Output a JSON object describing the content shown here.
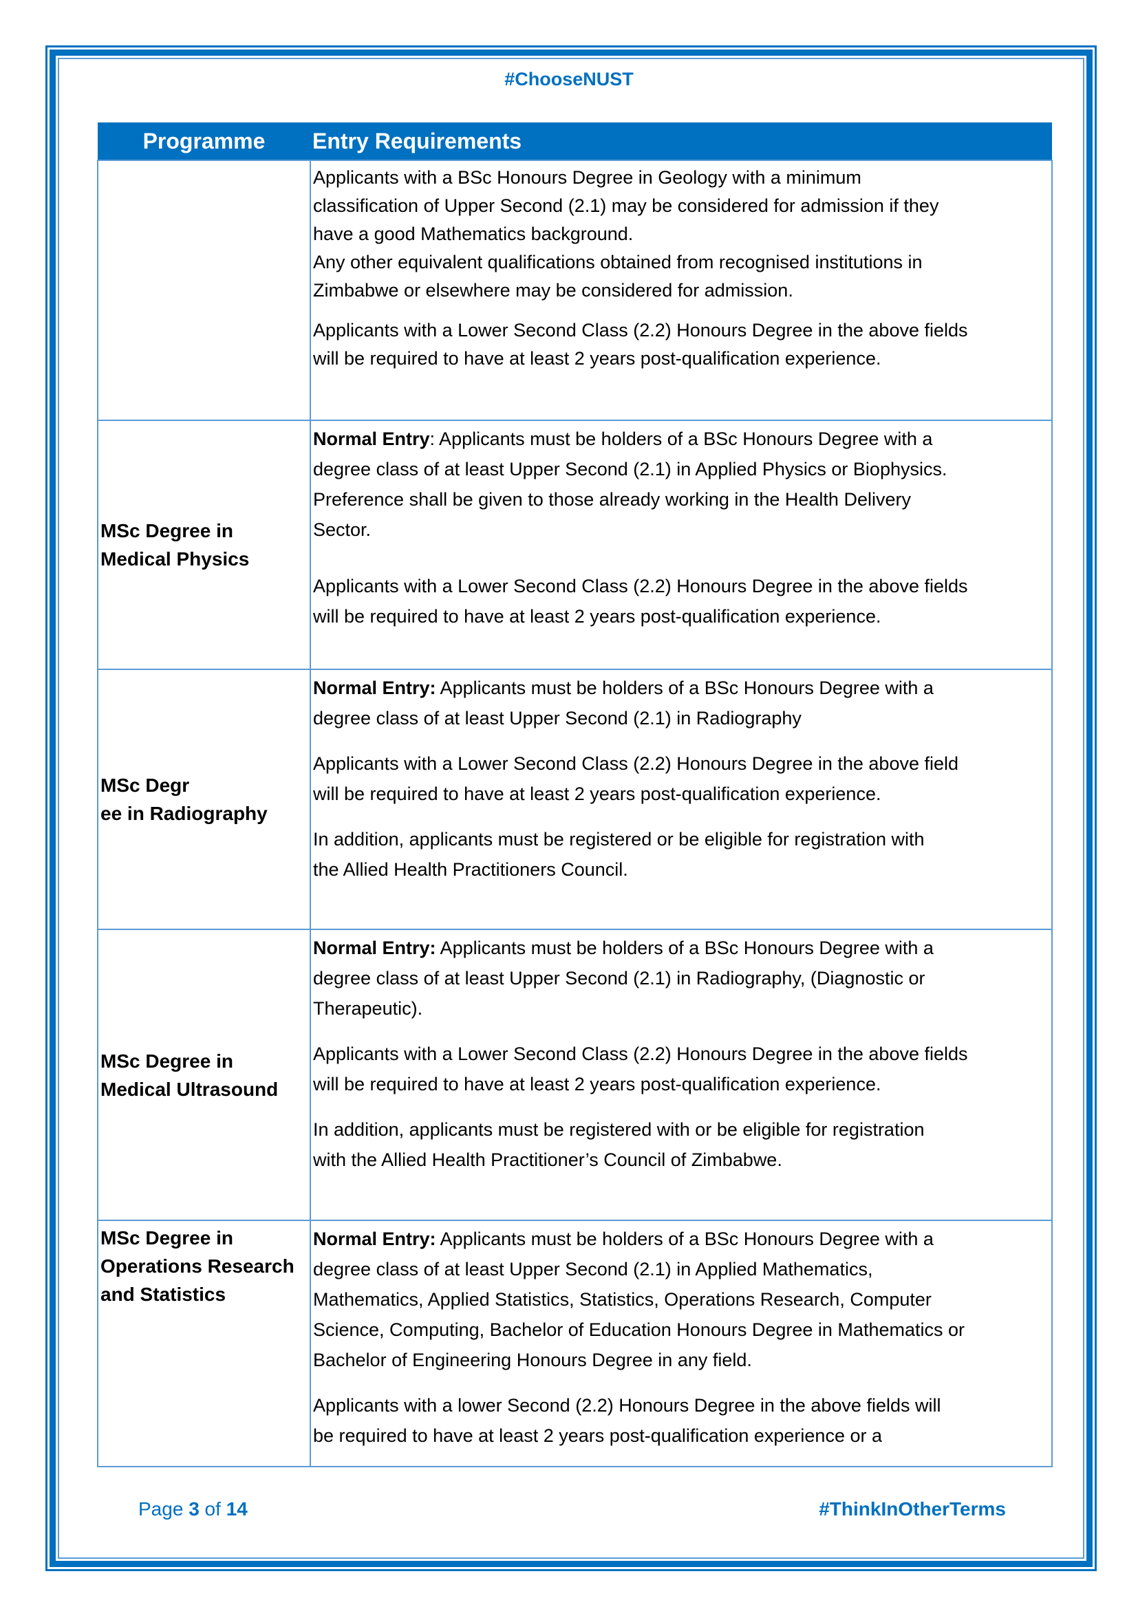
{
  "header": {
    "hashtag": "#ChooseNUST"
  },
  "table": {
    "columns": [
      "Programme",
      "Entry Requirements"
    ],
    "rows": [
      {
        "programme": [],
        "paragraphs": [
          {
            "lead": "",
            "lines": [
              "Applicants with a BSc Honours Degree in Geology with a minimum",
              "classification of Upper Second (2.1) may be considered for admission if they",
              "have a good Mathematics background.",
              "Any other equivalent qualifications obtained from recognised institutions in",
              "Zimbabwe or elsewhere may be considered for admission."
            ]
          },
          {
            "lead": "",
            "lines": [
              "Applicants with a Lower Second Class (2.2) Honours Degree in the above fields",
              "will be required to have at least 2 years post-qualification experience."
            ]
          }
        ]
      },
      {
        "programme": [
          "MSc Degree in",
          "Medical Physics"
        ],
        "paragraphs": [
          {
            "lead": "Normal Entry",
            "lines": [
              ": Applicants must be holders of a BSc Honours Degree with a",
              "degree class of at least Upper Second (2.1) in Applied Physics or Biophysics.",
              "Preference shall be given to those already working in the Health Delivery",
              "Sector."
            ]
          },
          {
            "lead": "",
            "lines": [
              "Applicants with a Lower Second Class (2.2) Honours Degree in the above fields",
              "will be required to have at least 2 years post-qualification experience."
            ]
          }
        ]
      },
      {
        "programme": [
          "MSc Degr",
          "ee  in Radiography"
        ],
        "paragraphs": [
          {
            "lead": "Normal Entry:",
            "lines": [
              " Applicants must be holders of a BSc Honours Degree with a",
              "degree class of at least Upper Second (2.1) in Radiography"
            ]
          },
          {
            "lead": "",
            "lines": [
              "Applicants with a Lower Second Class (2.2) Honours Degree in the above field",
              "will be required to have at least 2 years post-qualification experience."
            ]
          },
          {
            "lead": "",
            "lines": [
              "In addition, applicants must be registered or be eligible for registration with",
              "the Allied Health Practitioners Council."
            ]
          }
        ]
      },
      {
        "programme": [
          "MSc Degree in",
          "Medical Ultrasound"
        ],
        "paragraphs": [
          {
            "lead": "Normal Entry:",
            "lines": [
              " Applicants must be holders of a BSc Honours Degree with a",
              "degree class of at least Upper Second (2.1) in Radiography, (Diagnostic or",
              "Therapeutic)."
            ]
          },
          {
            "lead": "",
            "lines": [
              "Applicants with a Lower Second Class (2.2) Honours Degree in the above fields",
              "will be required to have at least 2 years post-qualification experience."
            ]
          },
          {
            "lead": "",
            "lines": [
              "In addition, applicants must be registered with or be eligible for registration",
              "with the Allied Health Practitioner’s Council of Zimbabwe."
            ]
          }
        ]
      },
      {
        "programme": [
          "MSc Degree in",
          "Operations Research",
          "and Statistics"
        ],
        "paragraphs": [
          {
            "lead": "Normal Entry:",
            "lines": [
              " Applicants must be holders of a BSc Honours Degree with a",
              "degree class of at least Upper Second (2.1) in Applied Mathematics,",
              "Mathematics, Applied Statistics, Statistics, Operations Research, Computer",
              "Science, Computing, Bachelor of Education Honours Degree in Mathematics or",
              "Bachelor of Engineering Honours Degree in any field."
            ]
          },
          {
            "lead": "",
            "lines": [
              "Applicants with a lower Second (2.2) Honours Degree in the above fields will",
              "be required to have at least 2 years post-qualification experience or a"
            ]
          }
        ]
      }
    ]
  },
  "footer": {
    "page_label": "Page",
    "page_current": "3",
    "page_of": "of",
    "page_total": "14",
    "hashtag": "#ThinkInOtherTerms"
  },
  "colors": {
    "brand_blue": "#0070C0",
    "grid_blue": "#5b9bd5"
  }
}
